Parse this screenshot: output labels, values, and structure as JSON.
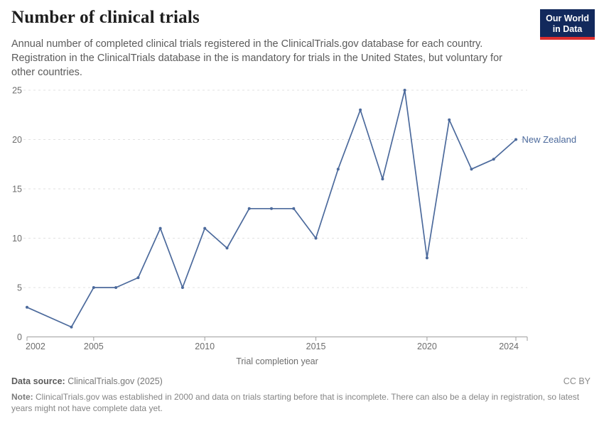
{
  "header": {
    "title": "Number of clinical trials",
    "subtitle": "Annual number of completed clinical trials registered in the ClinicalTrials.gov database for each country. Registration in the ClinicalTrials database in the is mandatory for trials in the United States, but voluntary for other countries.",
    "logo": {
      "line1": "Our World",
      "line2": "in Data"
    }
  },
  "chart_data": {
    "type": "line",
    "title": "Number of clinical trials",
    "xlabel": "Trial completion year",
    "ylabel": "",
    "xlim": [
      2002,
      2024
    ],
    "ylim": [
      0,
      25
    ],
    "x_ticks": [
      2002,
      2005,
      2010,
      2015,
      2020,
      2024
    ],
    "y_ticks": [
      0,
      5,
      10,
      15,
      20,
      25
    ],
    "grid": "horizontal-dashed",
    "legend": "end-of-line-label",
    "series": [
      {
        "name": "New Zealand",
        "color": "#4C6A9C",
        "points": [
          [
            2002,
            3
          ],
          [
            2004,
            1
          ],
          [
            2005,
            5
          ],
          [
            2006,
            5
          ],
          [
            2007,
            6
          ],
          [
            2008,
            11
          ],
          [
            2009,
            5
          ],
          [
            2010,
            11
          ],
          [
            2011,
            9
          ],
          [
            2012,
            13
          ],
          [
            2013,
            13
          ],
          [
            2014,
            13
          ],
          [
            2015,
            10
          ],
          [
            2016,
            17
          ],
          [
            2017,
            23
          ],
          [
            2018,
            16
          ],
          [
            2019,
            25
          ],
          [
            2020,
            8
          ],
          [
            2021,
            22
          ],
          [
            2022,
            17
          ],
          [
            2023,
            18
          ],
          [
            2024,
            20
          ]
        ]
      }
    ],
    "colors": {
      "gridline": "#e2e2e2",
      "axis": "#9e9e9e",
      "tick_label": "#6d6d6d",
      "axis_title": "#6d6d6d"
    }
  },
  "footer": {
    "source_label": "Data source:",
    "source_value": "ClinicalTrials.gov (2025)",
    "license": "CC BY",
    "note_label": "Note:",
    "note_text": "ClinicalTrials.gov was established in 2000 and data on trials starting before that is incomplete. There can also be a delay in registration, so latest years might not have complete data yet."
  }
}
